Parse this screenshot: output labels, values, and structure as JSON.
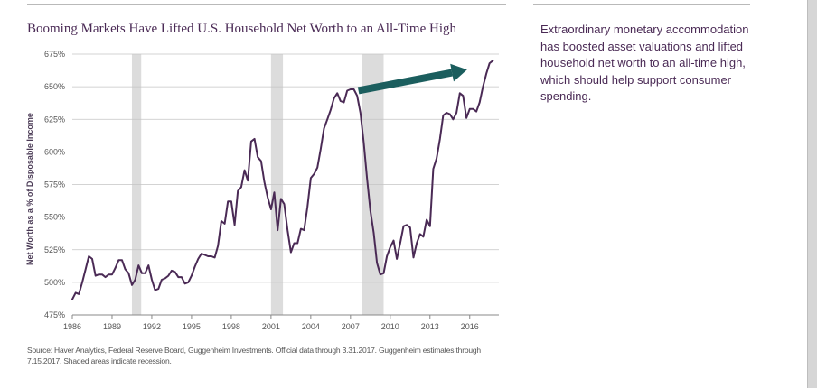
{
  "title": "Booming Markets Have Lifted U.S. Household Net Worth to an All-Time High",
  "commentary": "Extraordinary monetary accommodation has boosted asset valuations and lifted household net worth to an all-time high, which should help support consumer spending.",
  "source": "Source: Haver Analytics, Federal Reserve Board, Guggenheim Investments. Official data through 3.31.2017. Guggenheim estimates through 7.15.2017. Shaded areas indicate recession.",
  "chart_data": {
    "type": "line",
    "ylabel": "Net Worth as a % of Disposable Income",
    "xlabel": "",
    "xlim": [
      1986,
      2018.2
    ],
    "ylim": [
      475,
      675
    ],
    "grid": true,
    "x_ticks": [
      1986,
      1989,
      1992,
      1995,
      1998,
      2001,
      2004,
      2007,
      2010,
      2013,
      2016
    ],
    "x_tick_labels": [
      "1986",
      "1989",
      "1992",
      "1995",
      "1998",
      "2001",
      "2004",
      "2007",
      "2010",
      "2013",
      "2016"
    ],
    "y_ticks": [
      475,
      500,
      525,
      550,
      575,
      600,
      625,
      650,
      675
    ],
    "y_tick_labels": [
      "475%",
      "500%",
      "525%",
      "550%",
      "575%",
      "600%",
      "625%",
      "650%",
      "675%"
    ],
    "recessions": [
      [
        1990.5,
        1991.2
      ],
      [
        2001.0,
        2001.9
      ],
      [
        2007.9,
        2009.5
      ]
    ],
    "annotation_arrow": {
      "from": [
        2007.6,
        647
      ],
      "to": [
        2015.8,
        663
      ],
      "color": "#1b5e5e"
    },
    "series": [
      {
        "color": "#4a2a55",
        "points": [
          [
            1986.0,
            487
          ],
          [
            1986.25,
            492
          ],
          [
            1986.5,
            491
          ],
          [
            1986.75,
            500
          ],
          [
            1987.0,
            510
          ],
          [
            1987.25,
            520
          ],
          [
            1987.5,
            518
          ],
          [
            1987.75,
            505
          ],
          [
            1988.0,
            506
          ],
          [
            1988.25,
            506
          ],
          [
            1988.5,
            504
          ],
          [
            1988.75,
            506
          ],
          [
            1989.0,
            506
          ],
          [
            1989.25,
            511
          ],
          [
            1989.5,
            517
          ],
          [
            1989.75,
            517
          ],
          [
            1990.0,
            510
          ],
          [
            1990.25,
            507
          ],
          [
            1990.5,
            498
          ],
          [
            1990.75,
            502
          ],
          [
            1991.0,
            513
          ],
          [
            1991.25,
            507
          ],
          [
            1991.5,
            507
          ],
          [
            1991.75,
            513
          ],
          [
            1992.0,
            502
          ],
          [
            1992.25,
            494
          ],
          [
            1992.5,
            495
          ],
          [
            1992.75,
            502
          ],
          [
            1993.0,
            503
          ],
          [
            1993.25,
            505
          ],
          [
            1993.5,
            509
          ],
          [
            1993.75,
            508
          ],
          [
            1994.0,
            504
          ],
          [
            1994.25,
            504
          ],
          [
            1994.5,
            499
          ],
          [
            1994.75,
            500
          ],
          [
            1995.0,
            505
          ],
          [
            1995.25,
            512
          ],
          [
            1995.5,
            518
          ],
          [
            1995.75,
            522
          ],
          [
            1996.0,
            521
          ],
          [
            1996.25,
            520
          ],
          [
            1996.5,
            520
          ],
          [
            1996.75,
            519
          ],
          [
            1997.0,
            528
          ],
          [
            1997.25,
            547
          ],
          [
            1997.5,
            545
          ],
          [
            1997.75,
            562
          ],
          [
            1998.0,
            562
          ],
          [
            1998.25,
            544
          ],
          [
            1998.5,
            570
          ],
          [
            1998.75,
            573
          ],
          [
            1999.0,
            586
          ],
          [
            1999.25,
            578
          ],
          [
            1999.5,
            608
          ],
          [
            1999.75,
            610
          ],
          [
            2000.0,
            596
          ],
          [
            2000.25,
            593
          ],
          [
            2000.5,
            577
          ],
          [
            2000.75,
            565
          ],
          [
            2001.0,
            556
          ],
          [
            2001.25,
            569
          ],
          [
            2001.5,
            540
          ],
          [
            2001.75,
            564
          ],
          [
            2002.0,
            560
          ],
          [
            2002.25,
            540
          ],
          [
            2002.5,
            523
          ],
          [
            2002.75,
            530
          ],
          [
            2003.0,
            530
          ],
          [
            2003.25,
            541
          ],
          [
            2003.5,
            540
          ],
          [
            2003.75,
            558
          ],
          [
            2004.0,
            580
          ],
          [
            2004.25,
            583
          ],
          [
            2004.5,
            588
          ],
          [
            2004.75,
            602
          ],
          [
            2005.0,
            618
          ],
          [
            2005.25,
            625
          ],
          [
            2005.5,
            632
          ],
          [
            2005.75,
            641
          ],
          [
            2006.0,
            645
          ],
          [
            2006.25,
            639
          ],
          [
            2006.5,
            638
          ],
          [
            2006.75,
            647
          ],
          [
            2007.0,
            648
          ],
          [
            2007.25,
            648
          ],
          [
            2007.5,
            643
          ],
          [
            2007.75,
            630
          ],
          [
            2008.0,
            607
          ],
          [
            2008.25,
            580
          ],
          [
            2008.5,
            555
          ],
          [
            2008.75,
            538
          ],
          [
            2009.0,
            515
          ],
          [
            2009.25,
            506
          ],
          [
            2009.5,
            507
          ],
          [
            2009.75,
            520
          ],
          [
            2010.0,
            527
          ],
          [
            2010.25,
            532
          ],
          [
            2010.5,
            518
          ],
          [
            2010.75,
            530
          ],
          [
            2011.0,
            543
          ],
          [
            2011.25,
            544
          ],
          [
            2011.5,
            542
          ],
          [
            2011.75,
            519
          ],
          [
            2012.0,
            530
          ],
          [
            2012.25,
            537
          ],
          [
            2012.5,
            535
          ],
          [
            2012.75,
            548
          ],
          [
            2013.0,
            543
          ],
          [
            2013.25,
            587
          ],
          [
            2013.5,
            595
          ],
          [
            2013.75,
            610
          ],
          [
            2014.0,
            628
          ],
          [
            2014.25,
            630
          ],
          [
            2014.5,
            629
          ],
          [
            2014.75,
            625
          ],
          [
            2015.0,
            630
          ],
          [
            2015.25,
            645
          ],
          [
            2015.5,
            643
          ],
          [
            2015.75,
            626
          ],
          [
            2016.0,
            633
          ],
          [
            2016.25,
            633
          ],
          [
            2016.5,
            631
          ],
          [
            2016.75,
            638
          ],
          [
            2017.0,
            650
          ],
          [
            2017.25,
            660
          ],
          [
            2017.5,
            668
          ],
          [
            2017.75,
            670
          ]
        ]
      }
    ]
  }
}
